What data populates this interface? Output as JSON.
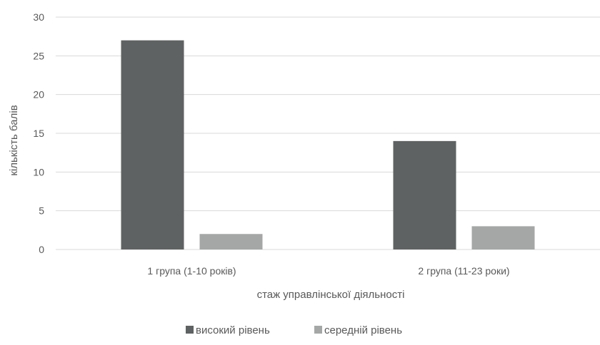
{
  "chart_data": {
    "type": "bar",
    "title": "",
    "xlabel": "стаж управлінської діяльності",
    "ylabel": "кількість балів",
    "categories": [
      "1 група (1-10 років)",
      "2 група (11-23 роки)"
    ],
    "series": [
      {
        "name": "високий рівень",
        "values": [
          27,
          14
        ],
        "color": "#5f6262"
      },
      {
        "name": "середній рівень",
        "values": [
          2,
          3
        ],
        "color": "#a5a7a7"
      }
    ],
    "ylim": [
      0,
      30
    ],
    "yticks": [
      0,
      5,
      10,
      15,
      20,
      25,
      30
    ],
    "grid": true,
    "legend": "bottom"
  }
}
